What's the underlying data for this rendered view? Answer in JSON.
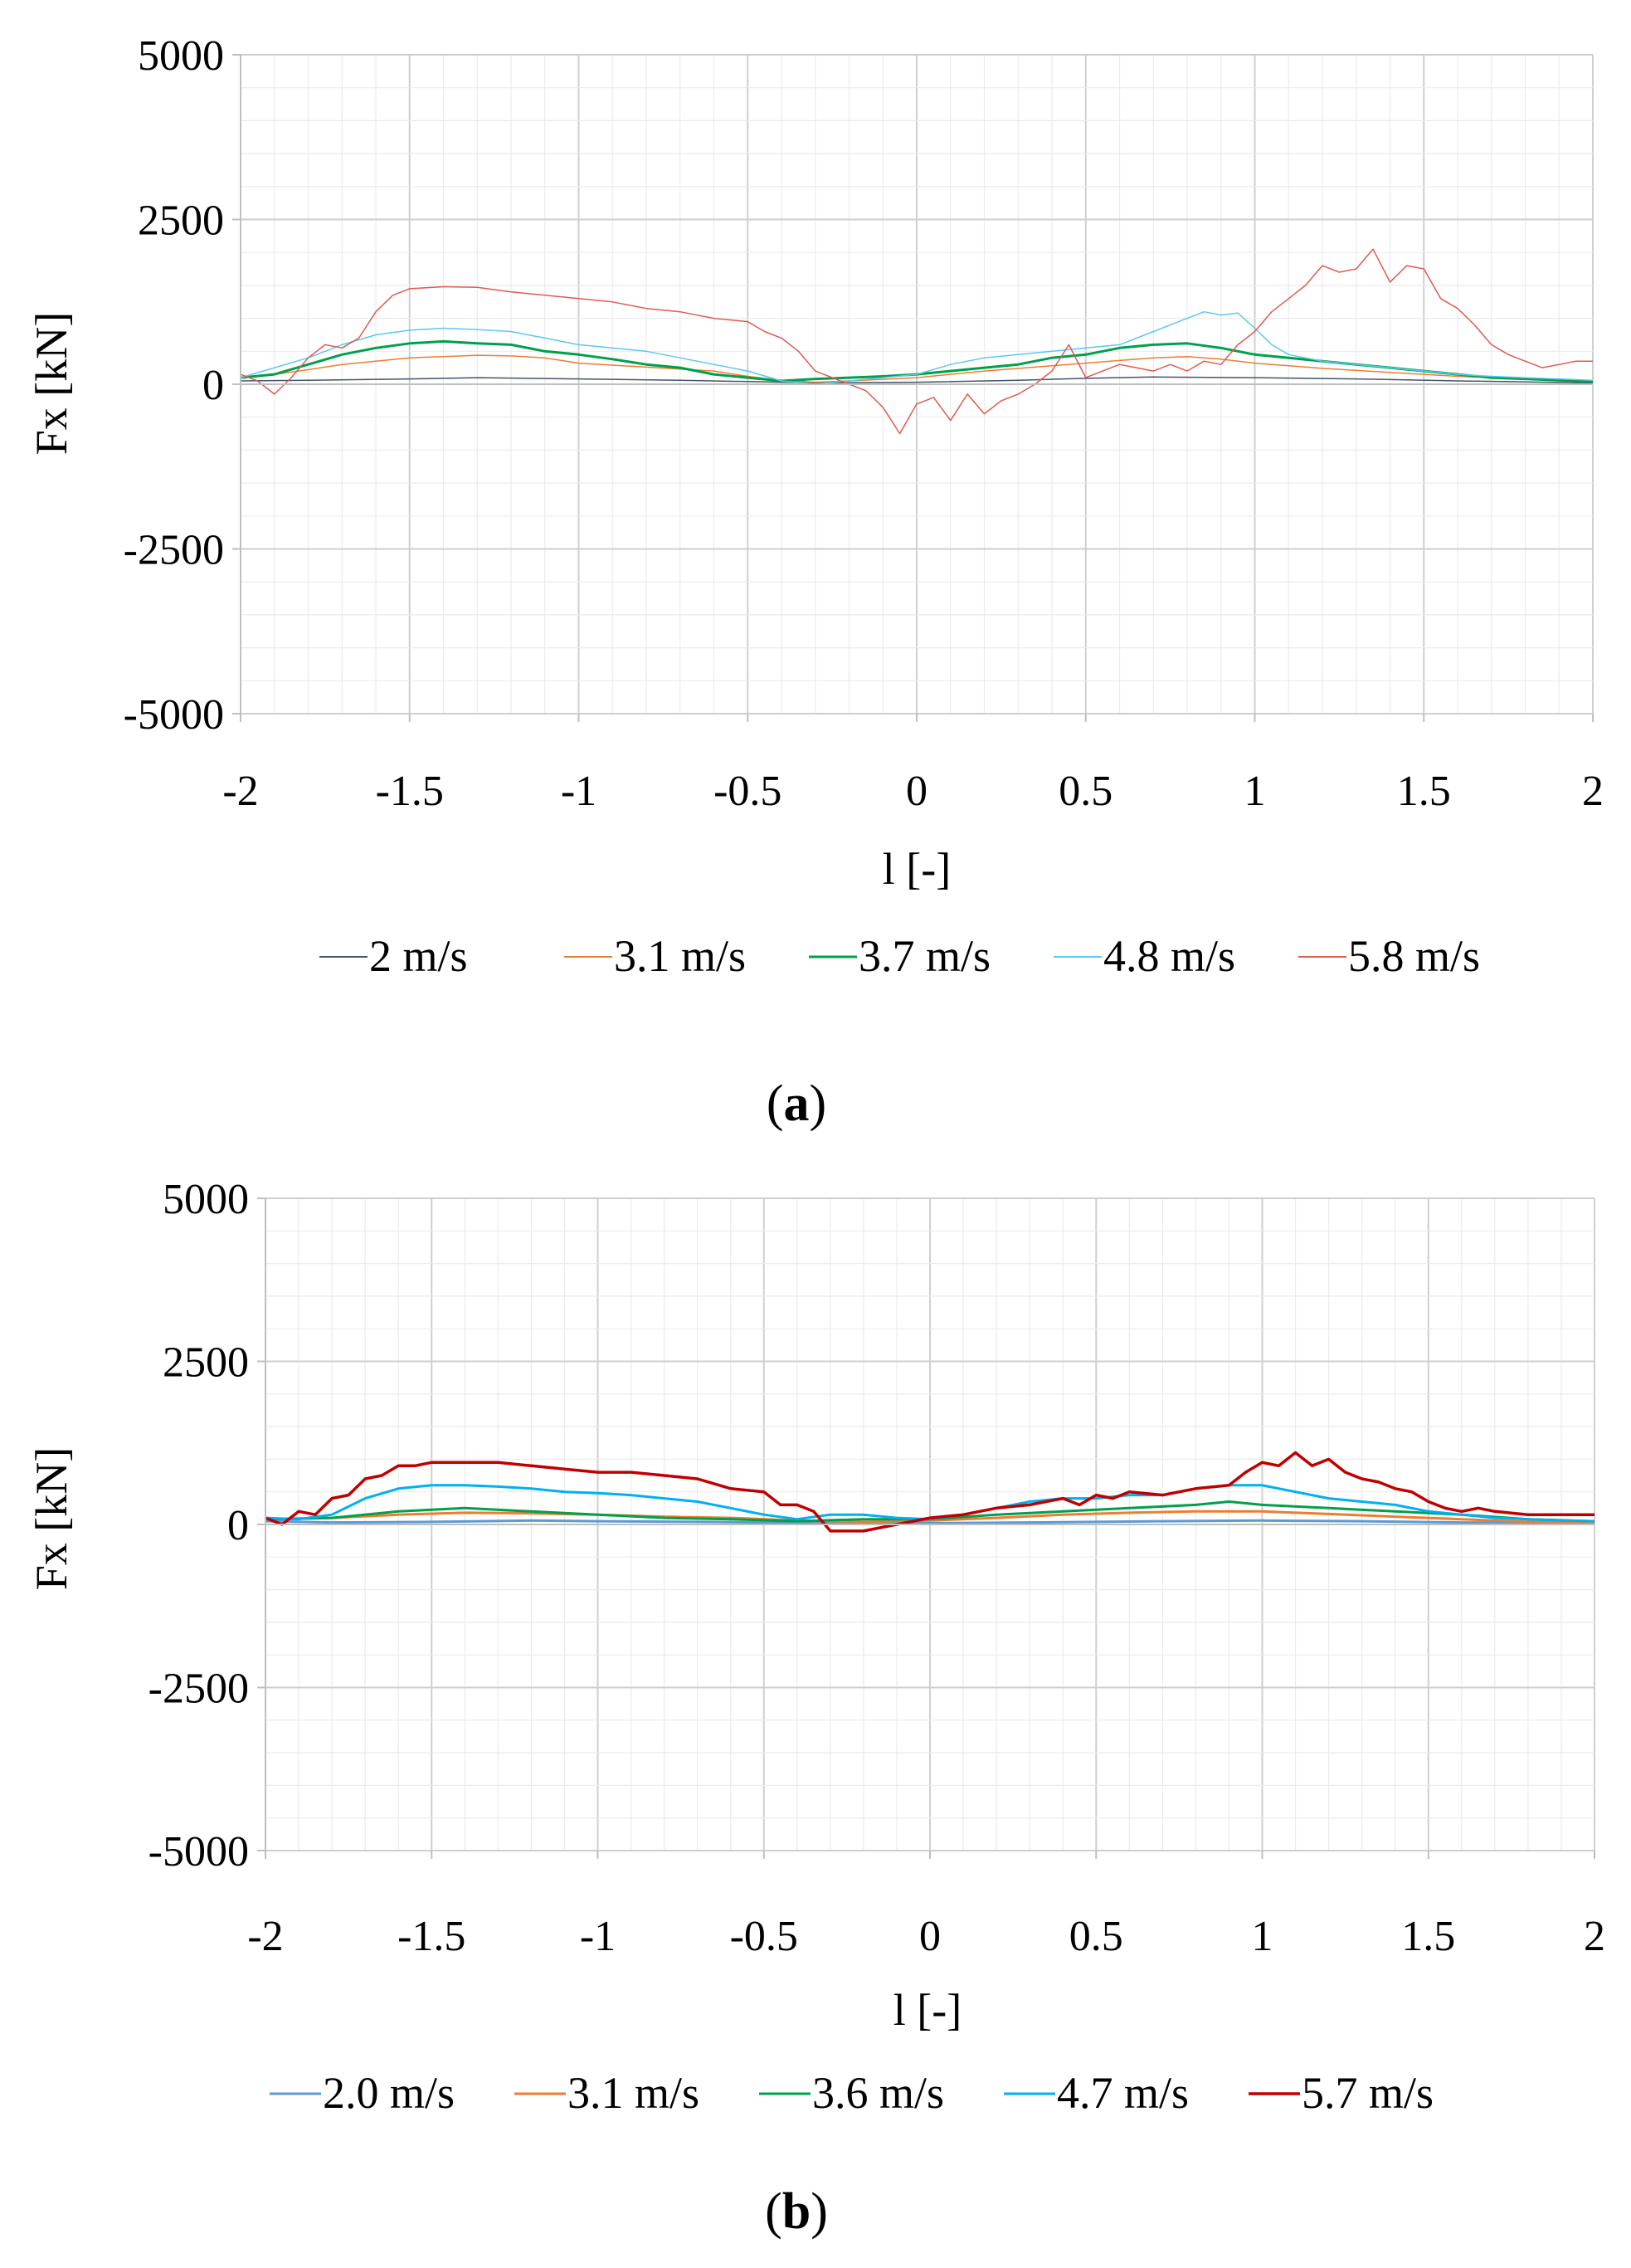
{
  "chart_data": [
    {
      "type": "line",
      "panel": "a",
      "caption": {
        "open": "(",
        "letter": "a",
        "close": ")"
      },
      "xlabel": "l [-]",
      "ylabel": "Fx [kN]",
      "xlim": [
        -2,
        2
      ],
      "ylim": [
        -5000,
        5000
      ],
      "x_ticks": [
        "-2",
        "-1.5",
        "-1",
        "-0.5",
        "0",
        "0.5",
        "1",
        "1.5",
        "2"
      ],
      "y_ticks": [
        "5000",
        "2500",
        "0",
        "-2500",
        "-5000"
      ],
      "grid": true,
      "legend_position": "bottom",
      "series": [
        {
          "name": "2 m/s",
          "color": "#44546a",
          "width": 1.5,
          "x": [
            -2,
            -1.8,
            -1.5,
            -1.3,
            -1,
            -0.7,
            -0.5,
            -0.3,
            0,
            0.3,
            0.5,
            0.7,
            1,
            1.3,
            1.6,
            2
          ],
          "y": [
            50,
            60,
            80,
            100,
            80,
            60,
            40,
            20,
            30,
            60,
            90,
            110,
            100,
            80,
            50,
            20
          ]
        },
        {
          "name": "3.1 m/s",
          "color": "#ed7d31",
          "width": 1.5,
          "x": [
            -2,
            -1.9,
            -1.8,
            -1.7,
            -1.6,
            -1.5,
            -1.4,
            -1.3,
            -1.2,
            -1.1,
            -1,
            -0.8,
            -0.6,
            -0.5,
            -0.4,
            -0.3,
            -0.2,
            0,
            0.2,
            0.4,
            0.5,
            0.6,
            0.7,
            0.8,
            0.9,
            1,
            1.1,
            1.2,
            1.4,
            1.6,
            1.8,
            2
          ],
          "y": [
            100,
            150,
            220,
            300,
            350,
            400,
            420,
            440,
            430,
            400,
            320,
            260,
            200,
            120,
            60,
            30,
            50,
            100,
            200,
            280,
            320,
            360,
            400,
            420,
            380,
            320,
            280,
            240,
            180,
            120,
            80,
            30
          ]
        },
        {
          "name": "3.7 m/s",
          "color": "#00a04b",
          "width": 3,
          "x": [
            -2,
            -1.9,
            -1.8,
            -1.7,
            -1.6,
            -1.5,
            -1.4,
            -1.3,
            -1.2,
            -1.1,
            -1,
            -0.9,
            -0.8,
            -0.7,
            -0.6,
            -0.5,
            -0.4,
            -0.3,
            -0.2,
            -0.1,
            0,
            0.1,
            0.2,
            0.3,
            0.4,
            0.5,
            0.6,
            0.7,
            0.8,
            0.9,
            1,
            1.1,
            1.2,
            1.3,
            1.4,
            1.5,
            1.6,
            1.7,
            1.8,
            1.9,
            2
          ],
          "y": [
            100,
            150,
            300,
            450,
            550,
            620,
            650,
            620,
            600,
            500,
            450,
            380,
            300,
            250,
            150,
            100,
            50,
            80,
            100,
            120,
            150,
            200,
            250,
            300,
            400,
            450,
            550,
            600,
            620,
            550,
            450,
            400,
            350,
            300,
            250,
            200,
            150,
            100,
            80,
            60,
            40
          ]
        },
        {
          "name": "4.8 m/s",
          "color": "#5bc8f0",
          "width": 1.5,
          "x": [
            -2,
            -1.9,
            -1.8,
            -1.7,
            -1.6,
            -1.5,
            -1.4,
            -1.3,
            -1.2,
            -1.1,
            -1,
            -0.9,
            -0.8,
            -0.7,
            -0.6,
            -0.5,
            -0.4,
            -0.3,
            -0.2,
            -0.1,
            0,
            0.1,
            0.2,
            0.3,
            0.4,
            0.5,
            0.6,
            0.7,
            0.8,
            0.85,
            0.9,
            0.95,
            1,
            1.05,
            1.1,
            1.2,
            1.3,
            1.4,
            1.5,
            1.6,
            1.7,
            1.8,
            1.9,
            2
          ],
          "y": [
            100,
            250,
            400,
            600,
            750,
            820,
            850,
            830,
            800,
            700,
            600,
            550,
            500,
            400,
            300,
            200,
            50,
            0,
            50,
            100,
            150,
            300,
            400,
            450,
            500,
            550,
            600,
            800,
            1000,
            1100,
            1050,
            1080,
            850,
            600,
            450,
            350,
            300,
            250,
            200,
            150,
            120,
            100,
            80,
            60
          ]
        },
        {
          "name": "5.8 m/s",
          "color": "#e05a50",
          "width": 1.5,
          "x": [
            -2,
            -1.95,
            -1.9,
            -1.85,
            -1.8,
            -1.75,
            -1.7,
            -1.65,
            -1.6,
            -1.55,
            -1.5,
            -1.4,
            -1.3,
            -1.2,
            -1.1,
            -1,
            -0.9,
            -0.8,
            -0.7,
            -0.6,
            -0.5,
            -0.45,
            -0.4,
            -0.35,
            -0.3,
            -0.25,
            -0.2,
            -0.15,
            -0.1,
            -0.05,
            0,
            0.05,
            0.1,
            0.15,
            0.2,
            0.25,
            0.3,
            0.35,
            0.4,
            0.45,
            0.5,
            0.55,
            0.6,
            0.65,
            0.7,
            0.75,
            0.8,
            0.85,
            0.9,
            0.95,
            1,
            1.05,
            1.1,
            1.15,
            1.2,
            1.25,
            1.3,
            1.35,
            1.4,
            1.45,
            1.5,
            1.55,
            1.6,
            1.65,
            1.7,
            1.75,
            1.8,
            1.85,
            1.9,
            1.95,
            2
          ],
          "y": [
            150,
            50,
            -150,
            100,
            400,
            600,
            550,
            700,
            1100,
            1350,
            1450,
            1480,
            1470,
            1400,
            1350,
            1300,
            1250,
            1150,
            1100,
            1000,
            950,
            800,
            700,
            500,
            200,
            100,
            0,
            -100,
            -350,
            -750,
            -300,
            -200,
            -550,
            -150,
            -450,
            -250,
            -150,
            0,
            200,
            600,
            100,
            200,
            300,
            250,
            200,
            300,
            200,
            350,
            300,
            600,
            800,
            1100,
            1300,
            1500,
            1800,
            1700,
            1750,
            2050,
            1550,
            1800,
            1750,
            1300,
            1150,
            900,
            600,
            450,
            350,
            250,
            300,
            350,
            350
          ]
        }
      ]
    },
    {
      "type": "line",
      "panel": "b",
      "caption": {
        "open": "(",
        "letter": "b",
        "close": ")"
      },
      "xlabel": "l [-]",
      "ylabel": "Fx [kN]",
      "xlim": [
        -2,
        2
      ],
      "ylim": [
        -5000,
        5000
      ],
      "x_ticks": [
        "-2",
        "-1.5",
        "-1",
        "-0.5",
        "0",
        "0.5",
        "1",
        "1.5",
        "2"
      ],
      "y_ticks": [
        "5000",
        "2500",
        "0",
        "-2500",
        "-5000"
      ],
      "grid": true,
      "legend_position": "bottom",
      "series": [
        {
          "name": "2.0 m/s",
          "color": "#5b9bd5",
          "width": 3,
          "x": [
            -2,
            -1.8,
            -1.5,
            -1.2,
            -1,
            -0.7,
            -0.5,
            -0.3,
            0,
            0.3,
            0.5,
            0.7,
            1,
            1.3,
            1.6,
            2
          ],
          "y": [
            50,
            30,
            40,
            60,
            50,
            40,
            30,
            20,
            20,
            30,
            40,
            50,
            60,
            50,
            30,
            20
          ]
        },
        {
          "name": "3.1 m/s",
          "color": "#ed7d31",
          "width": 3,
          "x": [
            -2,
            -1.8,
            -1.6,
            -1.4,
            -1.2,
            -1,
            -0.8,
            -0.6,
            -0.4,
            -0.2,
            0,
            0.2,
            0.4,
            0.6,
            0.8,
            1,
            1.2,
            1.4,
            1.6,
            1.8,
            2
          ],
          "y": [
            80,
            100,
            150,
            180,
            170,
            150,
            120,
            100,
            60,
            40,
            60,
            100,
            150,
            180,
            200,
            200,
            160,
            120,
            80,
            40,
            20
          ]
        },
        {
          "name": "3.6 m/s",
          "color": "#00a04b",
          "width": 3,
          "x": [
            -2,
            -1.8,
            -1.6,
            -1.4,
            -1.2,
            -1,
            -0.8,
            -0.6,
            -0.4,
            -0.2,
            0,
            0.2,
            0.4,
            0.6,
            0.8,
            0.9,
            1,
            1.2,
            1.4,
            1.6,
            1.8,
            2
          ],
          "y": [
            80,
            100,
            200,
            250,
            200,
            150,
            100,
            80,
            50,
            80,
            80,
            150,
            200,
            250,
            300,
            350,
            300,
            250,
            200,
            150,
            80,
            50
          ]
        },
        {
          "name": "4.7 m/s",
          "color": "#00b0f0",
          "width": 3,
          "x": [
            -2,
            -1.9,
            -1.8,
            -1.7,
            -1.6,
            -1.5,
            -1.4,
            -1.3,
            -1.2,
            -1.1,
            -1,
            -0.9,
            -0.8,
            -0.7,
            -0.6,
            -0.5,
            -0.4,
            -0.3,
            -0.2,
            -0.1,
            0,
            0.1,
            0.2,
            0.3,
            0.4,
            0.5,
            0.6,
            0.7,
            0.8,
            0.9,
            1,
            1.1,
            1.2,
            1.3,
            1.4,
            1.5,
            1.6,
            1.7,
            1.8,
            1.9,
            2
          ],
          "y": [
            100,
            80,
            150,
            400,
            550,
            600,
            600,
            580,
            550,
            500,
            480,
            450,
            400,
            350,
            250,
            150,
            80,
            150,
            150,
            100,
            80,
            150,
            250,
            350,
            400,
            400,
            450,
            450,
            550,
            600,
            600,
            500,
            400,
            350,
            300,
            200,
            150,
            100,
            80,
            60,
            50
          ]
        },
        {
          "name": "5.7 m/s",
          "color": "#c00000",
          "width": 3.5,
          "x": [
            -2,
            -1.95,
            -1.9,
            -1.85,
            -1.8,
            -1.75,
            -1.7,
            -1.65,
            -1.6,
            -1.55,
            -1.5,
            -1.4,
            -1.3,
            -1.2,
            -1.1,
            -1,
            -0.9,
            -0.8,
            -0.7,
            -0.6,
            -0.5,
            -0.45,
            -0.4,
            -0.35,
            -0.3,
            -0.2,
            -0.1,
            0,
            0.1,
            0.2,
            0.3,
            0.4,
            0.45,
            0.5,
            0.55,
            0.6,
            0.7,
            0.8,
            0.9,
            0.95,
            1,
            1.05,
            1.1,
            1.15,
            1.2,
            1.25,
            1.3,
            1.35,
            1.4,
            1.45,
            1.5,
            1.55,
            1.6,
            1.65,
            1.7,
            1.8,
            1.9,
            2
          ],
          "y": [
            100,
            0,
            200,
            150,
            400,
            450,
            700,
            750,
            900,
            900,
            950,
            950,
            950,
            900,
            850,
            800,
            800,
            750,
            700,
            550,
            500,
            300,
            300,
            200,
            -100,
            -100,
            0,
            100,
            150,
            250,
            300,
            400,
            300,
            450,
            400,
            500,
            450,
            550,
            600,
            800,
            950,
            900,
            1100,
            900,
            1000,
            800,
            700,
            650,
            550,
            500,
            350,
            250,
            200,
            250,
            200,
            150,
            150,
            150
          ]
        }
      ]
    }
  ]
}
